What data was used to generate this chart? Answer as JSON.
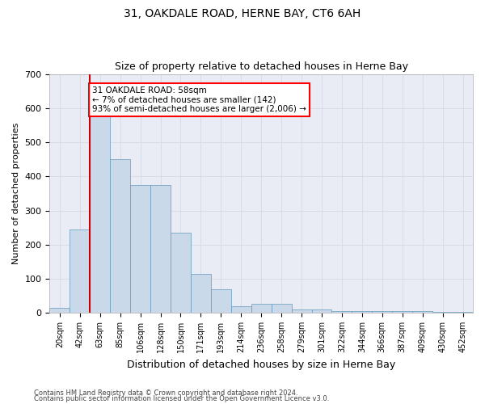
{
  "title1": "31, OAKDALE ROAD, HERNE BAY, CT6 6AH",
  "title2": "Size of property relative to detached houses in Herne Bay",
  "xlabel": "Distribution of detached houses by size in Herne Bay",
  "ylabel": "Number of detached properties",
  "annotation_line1": "31 OAKDALE ROAD: 58sqm",
  "annotation_line2": "← 7% of detached houses are smaller (142)",
  "annotation_line3": "93% of semi-detached houses are larger (2,006) →",
  "bar_color": "#c9d9ea",
  "bar_edge_color": "#6699bb",
  "marker_color": "#cc0000",
  "categories": [
    "20sqm",
    "42sqm",
    "63sqm",
    "85sqm",
    "106sqm",
    "128sqm",
    "150sqm",
    "171sqm",
    "193sqm",
    "214sqm",
    "236sqm",
    "258sqm",
    "279sqm",
    "301sqm",
    "322sqm",
    "344sqm",
    "366sqm",
    "387sqm",
    "409sqm",
    "430sqm",
    "452sqm"
  ],
  "values": [
    15,
    245,
    585,
    450,
    375,
    375,
    235,
    115,
    68,
    18,
    27,
    27,
    10,
    10,
    6,
    6,
    5,
    5,
    5,
    3,
    3
  ],
  "ylim": [
    0,
    700
  ],
  "yticks": [
    0,
    100,
    200,
    300,
    400,
    500,
    600,
    700
  ],
  "grid_color": "#d8dce8",
  "background_color": "#eaecf5",
  "footer1": "Contains HM Land Registry data © Crown copyright and database right 2024.",
  "footer2": "Contains public sector information licensed under the Open Government Licence v3.0."
}
